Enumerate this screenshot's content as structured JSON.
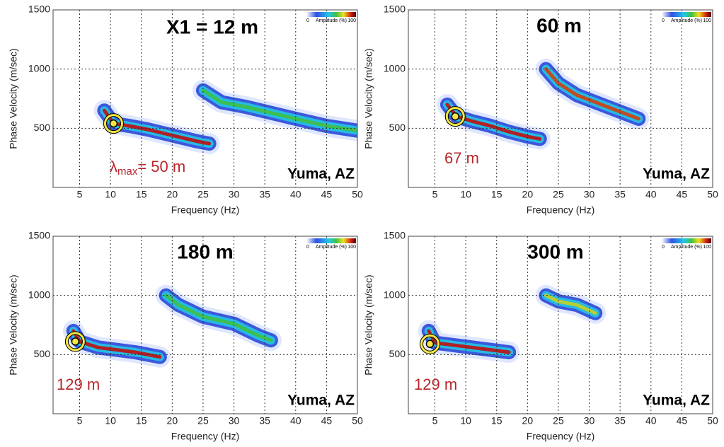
{
  "chart_data": [
    {
      "type": "dispersion",
      "title": "X1 = 12 m",
      "location": "Yuma, AZ",
      "annotation": {
        "symbol": "λ",
        "subscript": "max",
        "text": "= 50 m"
      },
      "x_label": "Frequency (Hz)",
      "y_label": "Phase Velocity (m/sec)",
      "colorbar": {
        "min": "0",
        "label": "Amplitude (%)",
        "max": "100"
      },
      "xlim": [
        0.7,
        50
      ],
      "ylim": [
        0,
        1500
      ],
      "xticks": [
        5,
        10,
        15,
        20,
        25,
        30,
        35,
        40,
        45,
        50
      ],
      "yticks": [
        500,
        1000,
        1500
      ],
      "grid": true,
      "series": [
        {
          "color": "#c01010",
          "x": [
            9,
            10.5,
            13,
            16,
            20,
            24,
            26
          ],
          "values": [
            650,
            540,
            520,
            490,
            440,
            390,
            370
          ]
        },
        {
          "color": "#40c040",
          "x": [
            25,
            28,
            32,
            36,
            40,
            45,
            50
          ],
          "values": [
            820,
            720,
            680,
            630,
            580,
            520,
            480
          ]
        }
      ],
      "marker": {
        "x": 10.5,
        "y": 540,
        "color": "#f5e642"
      }
    },
    {
      "type": "dispersion",
      "title": "60 m",
      "location": "Yuma, AZ",
      "annotation": {
        "text": "67 m"
      },
      "x_label": "Frequency (Hz)",
      "y_label": "Phase Velocity (m/sec)",
      "colorbar": {
        "min": "0",
        "label": "Amplitude (%)",
        "max": "100"
      },
      "xlim": [
        0.7,
        50
      ],
      "ylim": [
        0,
        1500
      ],
      "xticks": [
        5,
        10,
        15,
        20,
        25,
        30,
        35,
        40,
        45,
        50
      ],
      "yticks": [
        500,
        1000,
        1500
      ],
      "grid": true,
      "series": [
        {
          "color": "#c01010",
          "x": [
            7,
            8.5,
            11,
            14,
            17,
            20,
            22
          ],
          "values": [
            700,
            600,
            560,
            520,
            470,
            430,
            410
          ]
        },
        {
          "color": "#d04010",
          "x": [
            23,
            25,
            28,
            32,
            35,
            38
          ],
          "values": [
            1000,
            880,
            780,
            700,
            640,
            580
          ]
        }
      ],
      "marker": {
        "x": 8.3,
        "y": 600,
        "color": "#f5e642"
      }
    },
    {
      "type": "dispersion",
      "title": "180 m",
      "location": "Yuma, AZ",
      "annotation": {
        "text": "129 m"
      },
      "x_label": "Frequency (Hz)",
      "y_label": "Phase Velocity (m/sec)",
      "colorbar": {
        "min": "0",
        "label": "Amplitude (%)",
        "max": "100"
      },
      "xlim": [
        0.7,
        50
      ],
      "ylim": [
        0,
        1500
      ],
      "xticks": [
        5,
        10,
        15,
        20,
        25,
        30,
        35,
        40,
        45,
        50
      ],
      "yticks": [
        500,
        1000,
        1500
      ],
      "grid": true,
      "series": [
        {
          "color": "#c01010",
          "x": [
            4,
            5,
            8,
            11,
            14,
            16,
            18
          ],
          "values": [
            700,
            610,
            560,
            540,
            520,
            500,
            480
          ]
        },
        {
          "color": "#40c040",
          "x": [
            19,
            21,
            25,
            30,
            34,
            36
          ],
          "values": [
            1000,
            920,
            820,
            760,
            660,
            620
          ]
        }
      ],
      "marker": {
        "x": 4.3,
        "y": 610,
        "color": "#f5e642"
      }
    },
    {
      "type": "dispersion",
      "title": "300 m",
      "location": "Yuma, AZ",
      "annotation": {
        "text": "129 m"
      },
      "x_label": "Frequency (Hz)",
      "y_label": "Phase Velocity (m/sec)",
      "colorbar": {
        "min": "0",
        "label": "Amplitude (%)",
        "max": "100"
      },
      "xlim": [
        0.7,
        50
      ],
      "ylim": [
        0,
        1500
      ],
      "xticks": [
        5,
        10,
        15,
        20,
        25,
        30,
        35,
        40,
        45,
        50
      ],
      "yticks": [
        500,
        1000,
        1500
      ],
      "grid": true,
      "series": [
        {
          "color": "#c01010",
          "x": [
            4,
            5,
            8,
            11,
            14,
            17
          ],
          "values": [
            700,
            600,
            580,
            560,
            540,
            520
          ]
        },
        {
          "color": "#c8d020",
          "x": [
            23,
            25,
            28,
            31
          ],
          "values": [
            1000,
            950,
            920,
            850
          ]
        }
      ],
      "marker": {
        "x": 4.2,
        "y": 590,
        "color": "#f5e642"
      }
    }
  ]
}
